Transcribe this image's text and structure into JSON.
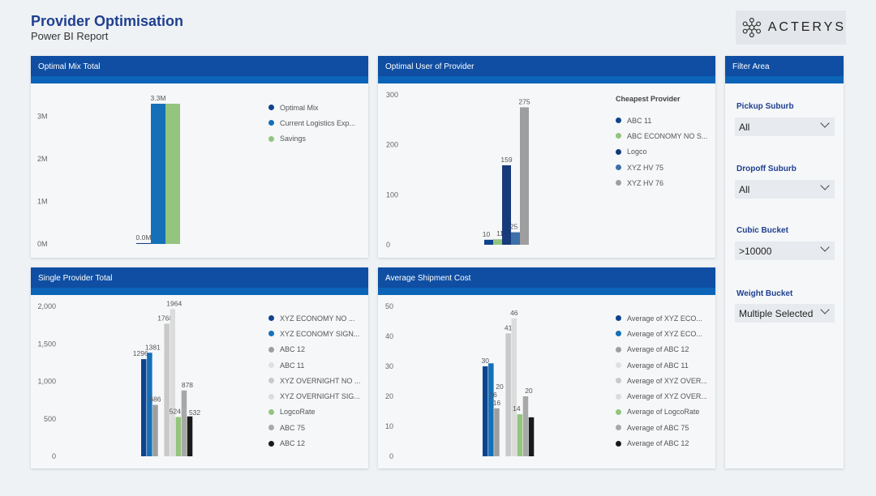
{
  "report": {
    "title": "Provider Optimisation",
    "subtitle": "Power BI Report",
    "logo_text": "ACTERYS",
    "logo_icon": "network-nodes-icon"
  },
  "colors": {
    "header": "#0f4ea2",
    "band": "#0c64b8",
    "navy": "#10438e",
    "blue": "#1570b8",
    "green": "#94c47d",
    "gray": "#9e9e9e",
    "light_gray": "#c9c9c9",
    "pale_gray": "#e0e0e0",
    "mid_blue": "#3f6fa8",
    "black": "#1a1a1a"
  },
  "panels": {
    "optimal_mix": {
      "title": "Optimal Mix Total",
      "chart_data": {
        "type": "bar",
        "categories": [
          ""
        ],
        "series": [
          {
            "name": "Optimal Mix",
            "values": [
              0.02
            ],
            "label": "0.0M",
            "color": "#10438e"
          },
          {
            "name": "Current Logistics Exp...",
            "values": [
              3.3
            ],
            "label": "3.3M",
            "color": "#1570b8"
          },
          {
            "name": "Savings",
            "values": [
              3.3
            ],
            "label": "",
            "color": "#94c47d"
          }
        ],
        "yticks": [
          "0M",
          "1M",
          "2M",
          "3M"
        ],
        "ylim": [
          0,
          3.3
        ]
      }
    },
    "optimal_user": {
      "title": "Optimal User of Provider",
      "legend_title": "Cheapest Provider",
      "chart_data": {
        "type": "bar",
        "categories": [
          ""
        ],
        "series": [
          {
            "name": "ABC 11",
            "values": [
              10
            ],
            "label": "10",
            "color": "#10438e"
          },
          {
            "name": "ABC ECONOMY NO S...",
            "values": [
              11
            ],
            "label": "11",
            "color": "#94c47d"
          },
          {
            "name": "Logco",
            "values": [
              159
            ],
            "label": "159",
            "color": "#163a7a"
          },
          {
            "name": "XYZ HV 75",
            "values": [
              25
            ],
            "label": "25",
            "color": "#3f6fa8"
          },
          {
            "name": "XYZ HV 76",
            "values": [
              275
            ],
            "label": "275",
            "color": "#9e9e9e"
          }
        ],
        "yticks": [
          "0",
          "100",
          "200",
          "300"
        ],
        "ylim": [
          0,
          300
        ]
      }
    },
    "single_provider": {
      "title": "Single Provider Total",
      "chart_data": {
        "type": "bar",
        "categories": [
          ""
        ],
        "series": [
          {
            "name": "XYZ ECONOMY NO ...",
            "values": [
              1296
            ],
            "label": "1296",
            "color": "#10438e"
          },
          {
            "name": "XYZ ECONOMY SIGN...",
            "values": [
              1381
            ],
            "label": "1381",
            "color": "#1570b8"
          },
          {
            "name": "ABC 12",
            "values": [
              686
            ],
            "label": "686",
            "color": "#9e9e9e"
          },
          {
            "name": "ABC 11",
            "values": [
              0
            ],
            "label": "",
            "color": "#e0e0e0"
          },
          {
            "name": "XYZ OVERNIGHT NO ...",
            "values": [
              1768
            ],
            "label": "1768",
            "color": "#c9c9c9"
          },
          {
            "name": "XYZ OVERNIGHT SIG...",
            "values": [
              1964
            ],
            "label": "1964",
            "color": "#dcdcdc"
          },
          {
            "name": "LogcoRate",
            "values": [
              524
            ],
            "label": "524",
            "color": "#94c47d"
          },
          {
            "name": "ABC 75",
            "values": [
              878
            ],
            "label": "878",
            "color": "#a8a8a8"
          },
          {
            "name": "ABC 12",
            "values": [
              532
            ],
            "label": "532",
            "color": "#1a1a1a"
          }
        ],
        "yticks": [
          "0",
          "500",
          "1,000",
          "1,500",
          "2,000"
        ],
        "ylim": [
          0,
          2000
        ]
      }
    },
    "avg_shipment": {
      "title": "Average Shipment Cost",
      "chart_data": {
        "type": "bar",
        "categories": [
          ""
        ],
        "series": [
          {
            "name": "Average of XYZ ECO...",
            "values": [
              30
            ],
            "label": "30",
            "color": "#10438e"
          },
          {
            "name": "Average of XYZ ECO...",
            "values": [
              31
            ],
            "label": "",
            "color": "#1570b8"
          },
          {
            "name": "Average of ABC 12",
            "values": [
              16
            ],
            "label": "16",
            "color": "#9e9e9e"
          },
          {
            "name": "Average of ABC 11",
            "values": [
              0
            ],
            "label": "",
            "color": "#e0e0e0"
          },
          {
            "name": "Average of XYZ OVER...",
            "values": [
              41
            ],
            "label": "41",
            "color": "#c9c9c9"
          },
          {
            "name": "Average of XYZ OVER...",
            "values": [
              46
            ],
            "label": "46",
            "color": "#dcdcdc"
          },
          {
            "name": "Average of LogcoRate",
            "values": [
              14
            ],
            "label": "14",
            "color": "#94c47d"
          },
          {
            "name": "Average of ABC 75",
            "values": [
              20
            ],
            "label": "20",
            "color": "#a8a8a8"
          },
          {
            "name": "Average of ABC 12",
            "values": [
              13
            ],
            "label": "",
            "color": "#1a1a1a"
          }
        ],
        "extra_labels": [
          "20",
          "16"
        ],
        "yticks": [
          "0",
          "10",
          "20",
          "30",
          "40",
          "50"
        ],
        "ylim": [
          0,
          50
        ]
      }
    },
    "filter": {
      "title": "Filter Area",
      "filters": [
        {
          "label": "Pickup Suburb",
          "value": "All"
        },
        {
          "label": "Dropoff Suburb",
          "value": "All"
        },
        {
          "label": "Cubic Bucket",
          "value": ">10000"
        },
        {
          "label": "Weight Bucket",
          "value": "Multiple Selected"
        }
      ]
    }
  }
}
